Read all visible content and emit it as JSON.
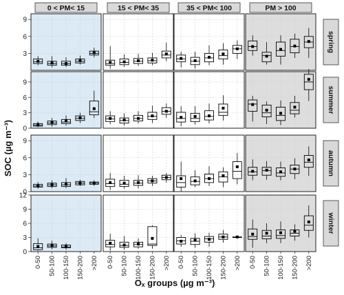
{
  "chart_data": {
    "type": "boxplot",
    "facet_cols": [
      "0 < PM< 15",
      "15 < PM< 35",
      "35 < PM< 100",
      "PM > 100"
    ],
    "facet_rows": [
      "spring",
      "summer",
      "autumn",
      "winter"
    ],
    "categories": [
      "0-50",
      "50-100",
      "100-150",
      "150-200",
      ">200"
    ],
    "ylabel": "SOC (µg m⁻³)",
    "xlabel": "Oₓ groups (µg m⁻³)",
    "row_axes": [
      {
        "ylim": [
          0,
          10
        ],
        "ticks": [
          3,
          6,
          9
        ]
      },
      {
        "ylim": [
          0,
          11
        ],
        "ticks": [
          0,
          3,
          6,
          9
        ]
      },
      {
        "ylim": [
          0,
          10
        ],
        "ticks": [
          0,
          3,
          6,
          9
        ]
      },
      {
        "ylim": [
          0,
          12
        ],
        "ticks": [
          0,
          3,
          6,
          9,
          12
        ]
      }
    ],
    "colors": {
      "panel_first_col": "#dbeaf5",
      "panel_last_col": "#dddddd",
      "panel_default": "#ffffff",
      "strip_fill": "#d9d9d9",
      "box_stroke": "#000000",
      "grid": "#d0d0d0"
    },
    "panels": [
      [
        [
          {
            "lo": 0.9,
            "q1": 1.2,
            "med": 1.5,
            "q3": 2.0,
            "hi": 2.5,
            "mean": 1.6
          },
          {
            "lo": 0.5,
            "q1": 0.9,
            "med": 1.2,
            "q3": 1.6,
            "hi": 2.5,
            "mean": 1.3
          },
          {
            "lo": 0.6,
            "q1": 0.9,
            "med": 1.2,
            "q3": 1.6,
            "hi": 2.3,
            "mean": 1.2
          },
          {
            "lo": 1.0,
            "q1": 1.3,
            "med": 1.6,
            "q3": 2.0,
            "hi": 2.6,
            "mean": 1.7
          },
          {
            "lo": 2.3,
            "q1": 2.7,
            "med": 3.0,
            "q3": 3.4,
            "hi": 4.0,
            "mean": 3.1
          }
        ],
        [
          {
            "lo": 0.3,
            "q1": 0.9,
            "med": 1.2,
            "q3": 1.8,
            "hi": 4.3,
            "mean": 1.4
          },
          {
            "lo": 0.6,
            "q1": 1.0,
            "med": 1.4,
            "q3": 2.0,
            "hi": 2.8,
            "mean": 1.5
          },
          {
            "lo": 0.8,
            "q1": 1.2,
            "med": 1.6,
            "q3": 2.1,
            "hi": 2.9,
            "mean": 1.7
          },
          {
            "lo": 0.9,
            "q1": 1.3,
            "med": 1.7,
            "q3": 2.2,
            "hi": 3.1,
            "mean": 1.8
          },
          {
            "lo": 1.6,
            "q1": 2.2,
            "med": 2.7,
            "q3": 3.4,
            "hi": 4.9,
            "mean": 2.9
          }
        ],
        [
          {
            "lo": 0.5,
            "q1": 1.5,
            "med": 2.0,
            "q3": 2.7,
            "hi": 3.3,
            "mean": 2.1
          },
          {
            "lo": 0.3,
            "q1": 1.0,
            "med": 1.6,
            "q3": 2.3,
            "hi": 3.3,
            "mean": 1.7
          },
          {
            "lo": 0.9,
            "q1": 1.5,
            "med": 2.2,
            "q3": 3.0,
            "hi": 4.4,
            "mean": 2.3
          },
          {
            "lo": 1.0,
            "q1": 2.0,
            "med": 2.6,
            "q3": 3.6,
            "hi": 4.8,
            "mean": 2.9
          },
          {
            "lo": 2.0,
            "q1": 3.0,
            "med": 3.8,
            "q3": 4.4,
            "hi": 5.3,
            "mean": 3.8
          }
        ],
        [
          {
            "lo": 2.6,
            "q1": 3.5,
            "med": 4.2,
            "q3": 5.2,
            "hi": 6.2,
            "mean": 4.2
          },
          {
            "lo": 1.0,
            "q1": 1.5,
            "med": 2.6,
            "q3": 3.2,
            "hi": 5.0,
            "mean": 2.5
          },
          {
            "lo": 1.0,
            "q1": 2.5,
            "med": 3.5,
            "q3": 5.0,
            "hi": 6.2,
            "mean": 3.7
          },
          {
            "lo": 2.2,
            "q1": 3.1,
            "med": 4.2,
            "q3": 5.5,
            "hi": 6.5,
            "mean": 4.3
          },
          {
            "lo": 2.2,
            "q1": 4.0,
            "med": 5.0,
            "q3": 6.0,
            "hi": 7.5,
            "mean": 5.1
          }
        ]
      ],
      [
        [
          {
            "lo": 0.2,
            "q1": 0.4,
            "med": 0.6,
            "q3": 0.9,
            "hi": 1.3,
            "mean": 0.7
          },
          {
            "lo": 0.3,
            "q1": 0.7,
            "med": 1.0,
            "q3": 1.4,
            "hi": 2.0,
            "mean": 1.1
          },
          {
            "lo": 0.5,
            "q1": 0.9,
            "med": 1.2,
            "q3": 1.7,
            "hi": 2.5,
            "mean": 1.4
          },
          {
            "lo": 1.0,
            "q1": 1.5,
            "med": 1.9,
            "q3": 2.4,
            "hi": 3.0,
            "mean": 2.0
          },
          {
            "lo": 2.0,
            "q1": 2.6,
            "med": 3.2,
            "q3": 5.3,
            "hi": 7.3,
            "mean": 3.8
          }
        ],
        [
          {
            "lo": 0.8,
            "q1": 1.3,
            "med": 1.8,
            "q3": 2.4,
            "hi": 3.3,
            "mean": 1.9
          },
          {
            "lo": 0.5,
            "q1": 1.0,
            "med": 1.5,
            "q3": 2.0,
            "hi": 2.9,
            "mean": 1.6
          },
          {
            "lo": 0.9,
            "q1": 1.4,
            "med": 1.9,
            "q3": 2.5,
            "hi": 3.3,
            "mean": 1.9
          },
          {
            "lo": 1.0,
            "q1": 1.7,
            "med": 2.3,
            "q3": 3.1,
            "hi": 4.4,
            "mean": 2.4
          },
          {
            "lo": 2.0,
            "q1": 2.7,
            "med": 3.3,
            "q3": 4.0,
            "hi": 4.8,
            "mean": 3.3
          }
        ],
        [
          {
            "lo": 0.4,
            "q1": 1.2,
            "med": 1.9,
            "q3": 3.1,
            "hi": 4.3,
            "mean": 2.1
          },
          {
            "lo": 0.7,
            "q1": 1.3,
            "med": 1.9,
            "q3": 2.9,
            "hi": 4.3,
            "mean": 2.3
          },
          {
            "lo": 0.9,
            "q1": 1.6,
            "med": 2.3,
            "q3": 3.4,
            "hi": 4.8,
            "mean": 2.4
          },
          {
            "lo": 1.5,
            "q1": 2.5,
            "med": 3.1,
            "q3": 4.7,
            "hi": 6.4,
            "mean": 3.9
          },
          {
            "lo": 0,
            "q1": 0,
            "med": 0,
            "q3": 0,
            "hi": 0,
            "mean": 0,
            "empty": true
          }
        ],
        [
          {
            "lo": 1.3,
            "q1": 3.3,
            "med": 4.7,
            "q3": 5.5,
            "hi": 6.3,
            "mean": 4.6
          },
          {
            "lo": 0.8,
            "q1": 2.2,
            "med": 3.0,
            "q3": 4.5,
            "hi": 5.2,
            "mean": 3.5
          },
          {
            "lo": 0.6,
            "q1": 1.5,
            "med": 2.5,
            "q3": 4.1,
            "hi": 5.4,
            "mean": 2.9
          },
          {
            "lo": 2.1,
            "q1": 2.8,
            "med": 3.5,
            "q3": 5.0,
            "hi": 6.3,
            "mean": 4.1
          },
          {
            "lo": 5.3,
            "q1": 7.5,
            "med": 9.0,
            "q3": 10.5,
            "hi": 11.5,
            "mean": 9.5
          }
        ]
      ],
      [
        [
          {
            "lo": 0.5,
            "q1": 0.8,
            "med": 1.0,
            "q3": 1.3,
            "hi": 1.7,
            "mean": 1.0
          },
          {
            "lo": 0.6,
            "q1": 0.9,
            "med": 1.2,
            "q3": 1.5,
            "hi": 2.0,
            "mean": 1.2
          },
          {
            "lo": 0.6,
            "q1": 0.9,
            "med": 1.2,
            "q3": 1.6,
            "hi": 2.4,
            "mean": 1.3
          },
          {
            "lo": 1.0,
            "q1": 1.2,
            "med": 1.5,
            "q3": 1.8,
            "hi": 2.1,
            "mean": 1.5
          },
          {
            "lo": 1.0,
            "q1": 1.3,
            "med": 1.5,
            "q3": 1.7,
            "hi": 2.0,
            "mean": 1.5
          }
        ],
        [
          {
            "lo": 0.3,
            "q1": 0.9,
            "med": 1.4,
            "q3": 2.2,
            "hi": 3.3,
            "mean": 1.6
          },
          {
            "lo": 0.5,
            "q1": 0.9,
            "med": 1.3,
            "q3": 2.0,
            "hi": 2.8,
            "mean": 1.5
          },
          {
            "lo": 0.6,
            "q1": 1.1,
            "med": 1.5,
            "q3": 2.0,
            "hi": 2.9,
            "mean": 1.6
          },
          {
            "lo": 1.0,
            "q1": 1.5,
            "med": 1.9,
            "q3": 2.3,
            "hi": 2.8,
            "mean": 1.9
          },
          {
            "lo": 1.6,
            "q1": 2.1,
            "med": 2.5,
            "q3": 2.9,
            "hi": 3.3,
            "mean": 2.5
          }
        ],
        [
          {
            "lo": 0.0,
            "q1": 0.8,
            "med": 1.6,
            "q3": 2.8,
            "hi": 5.3,
            "mean": 2.3
          },
          {
            "lo": 0.8,
            "q1": 1.2,
            "med": 1.8,
            "q3": 2.6,
            "hi": 3.8,
            "mean": 1.9
          },
          {
            "lo": 1.0,
            "q1": 1.6,
            "med": 2.3,
            "q3": 3.1,
            "hi": 4.5,
            "mean": 2.3
          },
          {
            "lo": 0.8,
            "q1": 1.7,
            "med": 2.6,
            "q3": 3.5,
            "hi": 4.3,
            "mean": 2.8
          },
          {
            "lo": 1.3,
            "q1": 2.3,
            "med": 3.6,
            "q3": 5.3,
            "hi": 6.8,
            "mean": 4.4
          }
        ],
        [
          {
            "lo": 2.0,
            "q1": 2.9,
            "med": 3.5,
            "q3": 4.3,
            "hi": 5.7,
            "mean": 3.6
          },
          {
            "lo": 2.1,
            "q1": 2.9,
            "med": 3.7,
            "q3": 4.3,
            "hi": 5.4,
            "mean": 3.8
          },
          {
            "lo": 2.0,
            "q1": 2.7,
            "med": 3.3,
            "q3": 4.2,
            "hi": 5.3,
            "mean": 3.5
          },
          {
            "lo": 2.2,
            "q1": 3.2,
            "med": 4.0,
            "q3": 4.7,
            "hi": 5.9,
            "mean": 4.0
          },
          {
            "lo": 2.8,
            "q1": 4.3,
            "med": 5.2,
            "q3": 6.4,
            "hi": 8.0,
            "mean": 5.6
          }
        ]
      ],
      [
        [
          {
            "lo": 0.2,
            "q1": 0.4,
            "med": 0.8,
            "q3": 1.7,
            "hi": 2.8,
            "mean": 1.1
          },
          {
            "lo": 0.5,
            "q1": 0.9,
            "med": 1.2,
            "q3": 1.6,
            "hi": 2.3,
            "mean": 1.3
          },
          {
            "lo": 0.4,
            "q1": 0.8,
            "med": 1.0,
            "q3": 1.4,
            "hi": 1.8,
            "mean": 1.1
          },
          {
            "lo": 0,
            "q1": 0,
            "med": 0,
            "q3": 0,
            "hi": 0,
            "mean": 0,
            "empty": true
          },
          {
            "lo": 0,
            "q1": 0,
            "med": 0,
            "q3": 0,
            "hi": 0,
            "mean": 0,
            "empty": true
          }
        ],
        [
          {
            "lo": 0.2,
            "q1": 1.0,
            "med": 1.5,
            "q3": 2.4,
            "hi": 3.8,
            "mean": 1.8
          },
          {
            "lo": 0.4,
            "q1": 0.9,
            "med": 1.3,
            "q3": 2.0,
            "hi": 3.3,
            "mean": 1.4
          },
          {
            "lo": 0.6,
            "q1": 1.0,
            "med": 1.5,
            "q3": 2.0,
            "hi": 2.8,
            "mean": 1.6
          },
          {
            "lo": 0.6,
            "q1": 1.3,
            "med": 1.6,
            "q3": 5.3,
            "hi": 5.6,
            "mean": 2.8
          },
          {
            "lo": 0,
            "q1": 0,
            "med": 0,
            "q3": 0,
            "hi": 0,
            "mean": 0,
            "empty": true
          }
        ],
        [
          {
            "lo": 1.0,
            "q1": 1.6,
            "med": 2.3,
            "q3": 3.0,
            "hi": 3.5,
            "mean": 2.2
          },
          {
            "lo": 0.8,
            "q1": 1.5,
            "med": 2.2,
            "q3": 2.8,
            "hi": 3.9,
            "mean": 2.4
          },
          {
            "lo": 1.0,
            "q1": 2.0,
            "med": 2.7,
            "q3": 3.2,
            "hi": 4.0,
            "mean": 2.6
          },
          {
            "lo": 1.9,
            "q1": 2.6,
            "med": 3.1,
            "q3": 3.7,
            "hi": 4.6,
            "mean": 3.1
          },
          {
            "lo": 3.1,
            "q1": 3.1,
            "med": 3.1,
            "q3": 3.1,
            "hi": 3.1,
            "mean": 3.1
          }
        ],
        [
          {
            "lo": 0.8,
            "q1": 2.6,
            "med": 3.2,
            "q3": 4.8,
            "hi": 6.8,
            "mean": 3.7
          },
          {
            "lo": 1.8,
            "q1": 2.7,
            "med": 3.3,
            "q3": 4.5,
            "hi": 6.0,
            "mean": 3.9
          },
          {
            "lo": 1.8,
            "q1": 2.8,
            "med": 3.4,
            "q3": 4.6,
            "hi": 6.4,
            "mean": 4.0
          },
          {
            "lo": 2.3,
            "q1": 3.3,
            "med": 3.9,
            "q3": 4.6,
            "hi": 5.8,
            "mean": 4.3
          },
          {
            "lo": 3.0,
            "q1": 4.5,
            "med": 5.6,
            "q3": 7.6,
            "hi": 9.8,
            "mean": 6.3
          }
        ]
      ]
    ]
  }
}
